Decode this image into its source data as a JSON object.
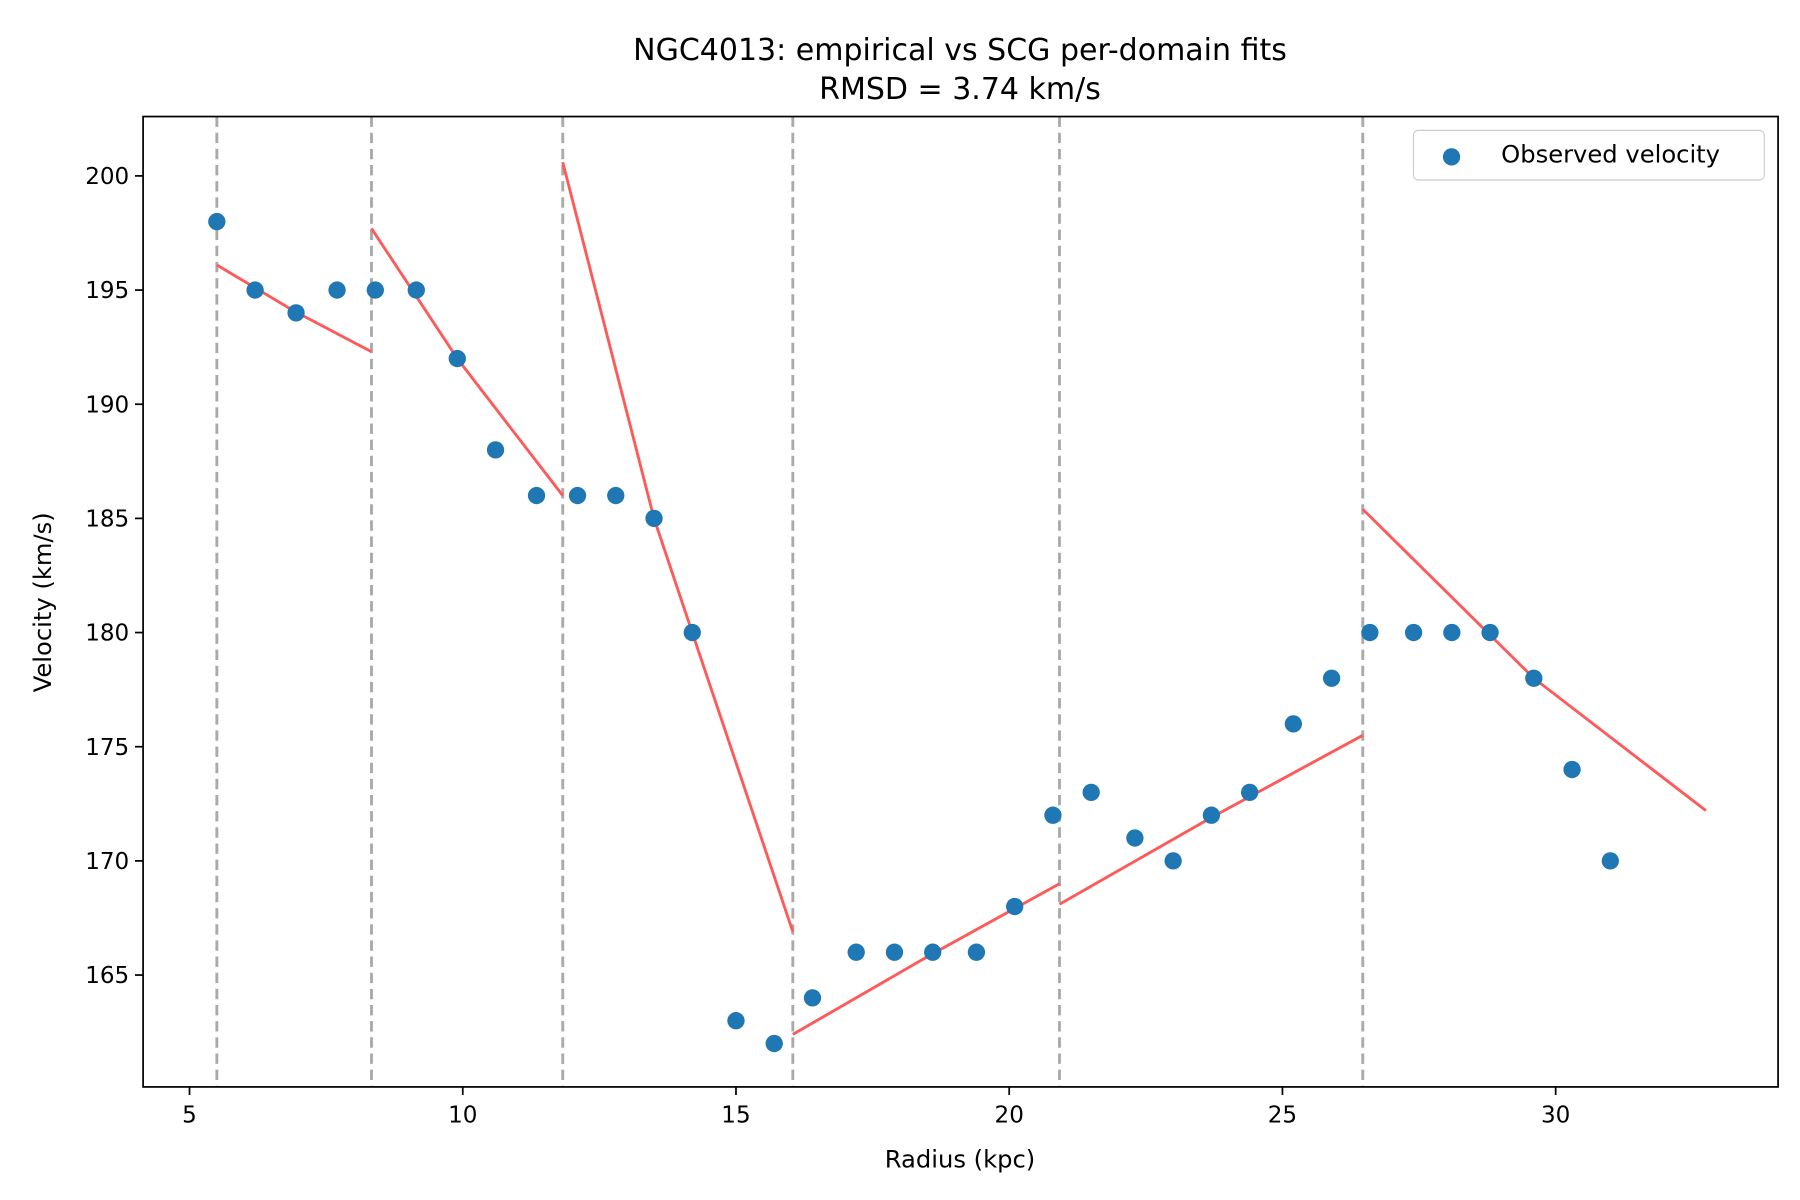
{
  "chart_data": {
    "type": "scatter",
    "title": "NGC4013: empirical vs SCG per-domain fits",
    "subtitle": "RMSD = 3.74 km/s",
    "xlabel": "Radius (kpc)",
    "ylabel": "Velocity (km/s)",
    "xlim": [
      4.15,
      34.07
    ],
    "ylim": [
      160.1,
      202.6
    ],
    "xticks": [
      5,
      10,
      15,
      20,
      25,
      30
    ],
    "yticks": [
      165,
      170,
      175,
      180,
      185,
      190,
      195,
      200
    ],
    "grid": false,
    "legend": {
      "placement": "top-right",
      "entries": [
        "Observed velocity"
      ]
    },
    "colors": {
      "points": "#1f77b4",
      "fit": "#ff5a5a",
      "boundary": "#aaaaaa"
    },
    "series": [
      {
        "name": "Observed velocity",
        "kind": "scatter",
        "x": [
          5.5,
          6.2,
          6.95,
          7.7,
          8.4,
          9.15,
          9.9,
          10.6,
          11.35,
          12.1,
          12.8,
          13.5,
          14.2,
          15.0,
          15.7,
          16.4,
          17.2,
          17.9,
          18.6,
          19.4,
          20.1,
          20.8,
          21.5,
          22.3,
          23.0,
          23.7,
          24.4,
          25.2,
          25.9,
          26.6,
          27.4,
          28.1,
          28.8,
          29.6,
          30.3,
          31.0
        ],
        "y": [
          198,
          195,
          194,
          195,
          195,
          195,
          192,
          188,
          186,
          186,
          186,
          185,
          180,
          163,
          162,
          164,
          166,
          166,
          166,
          166,
          168,
          172,
          173,
          171,
          170,
          172,
          173,
          176,
          178,
          180,
          180,
          180,
          180,
          178,
          174,
          170
        ]
      }
    ],
    "fit_segments": [
      {
        "x": [
          5.5,
          6.9,
          8.33
        ],
        "y": [
          196.1,
          194.1,
          192.3
        ]
      },
      {
        "x": [
          8.33,
          9.9,
          11.83
        ],
        "y": [
          197.7,
          192.0,
          186.0
        ]
      },
      {
        "x": [
          11.83,
          13.5,
          14.2,
          16.04
        ],
        "y": [
          200.6,
          185.0,
          180.0,
          166.9
        ]
      },
      {
        "x": [
          16.04,
          18.5,
          20.92
        ],
        "y": [
          162.4,
          165.8,
          169.0
        ]
      },
      {
        "x": [
          20.92,
          23.7,
          26.47
        ],
        "y": [
          168.1,
          171.9,
          175.5
        ]
      },
      {
        "x": [
          26.47,
          29.6,
          32.75
        ],
        "y": [
          185.4,
          178.0,
          172.2
        ]
      }
    ],
    "domain_boundaries": [
      5.5,
      8.33,
      11.83,
      16.04,
      20.92,
      26.47
    ]
  }
}
